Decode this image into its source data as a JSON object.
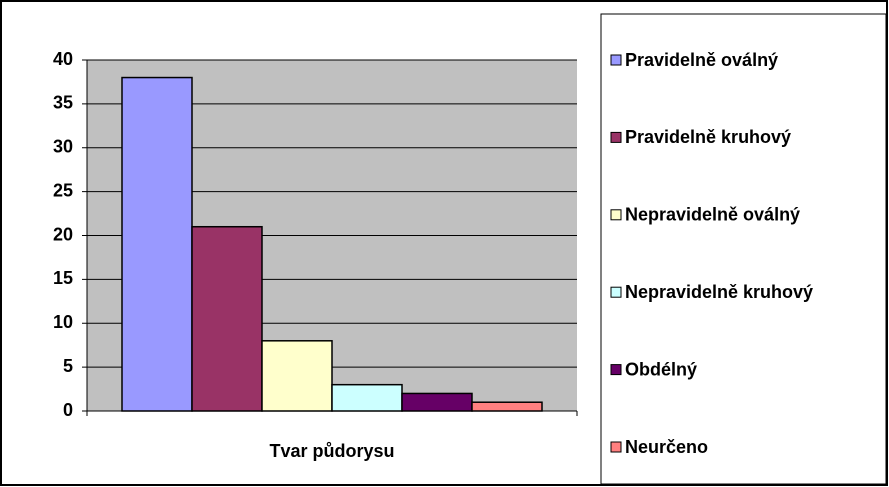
{
  "chart_data": {
    "type": "bar",
    "categories": [
      "Tvar půdorysu"
    ],
    "series": [
      {
        "name": "Pravidelně oválný",
        "color": "#9999ff",
        "values": [
          38
        ]
      },
      {
        "name": "Pravidelně kruhový",
        "color": "#993366",
        "values": [
          21
        ]
      },
      {
        "name": "Nepravidelně oválný",
        "color": "#ffffcc",
        "values": [
          8
        ]
      },
      {
        "name": "Nepravidelně kruhový",
        "color": "#ccffff",
        "values": [
          3
        ]
      },
      {
        "name": "Obdélný",
        "color": "#660066",
        "values": [
          2
        ]
      },
      {
        "name": "Neurčeno",
        "color": "#ff8080",
        "values": [
          1
        ]
      }
    ],
    "ylim": [
      0,
      40
    ],
    "yticks": [
      0,
      5,
      10,
      15,
      20,
      25,
      30,
      35,
      40
    ],
    "grid": true,
    "plot_background": "#c0c0c0",
    "legend": "right"
  }
}
